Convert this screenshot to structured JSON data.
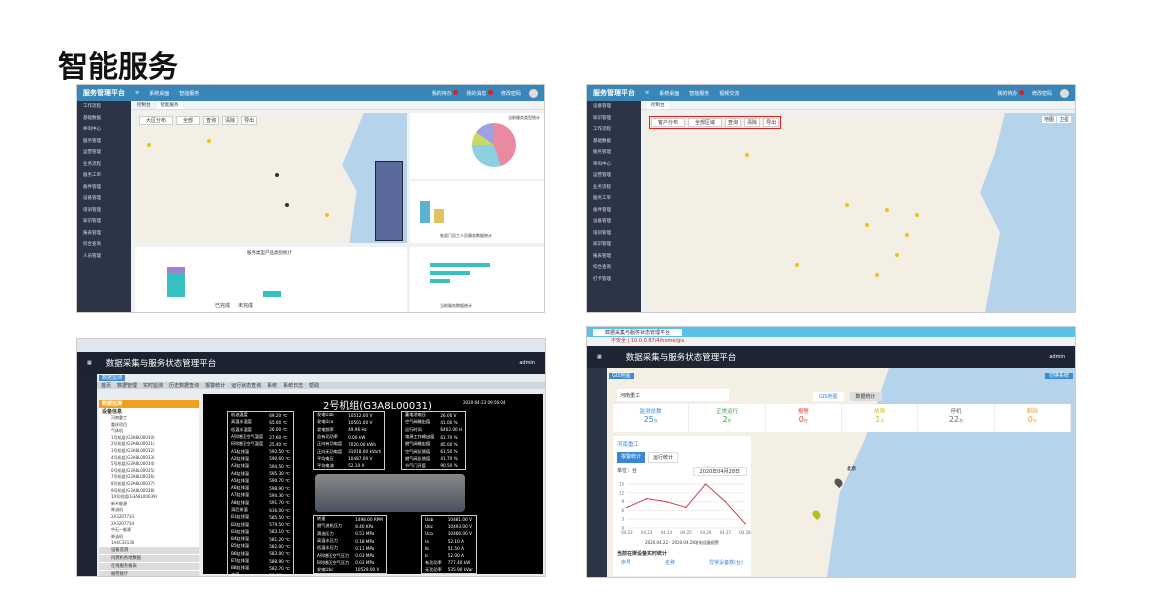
{
  "slide_title": "智能服务",
  "panel1": {
    "app_title": "服务管理平台",
    "nav": [
      "系统桌面",
      "智能服务"
    ],
    "header_links": [
      "我的待办",
      "我的消息",
      "修改密码"
    ],
    "tabs": [
      "控制台",
      "智能服务"
    ],
    "sidebar": [
      "工作流程",
      "基础数据",
      "呼叫中心",
      "服务管理",
      "运营管理",
      "业务流程",
      "服务工单",
      "备件管理",
      "设备管理",
      "培训管理",
      "知识管理",
      "报表管理",
      "综合查询",
      "人员管理"
    ],
    "filter": {
      "region": "大区分布",
      "product": "全部",
      "query": "查询",
      "reset": "清除",
      "export": "导出"
    },
    "chart_left_title": "服务类型产品类别统计",
    "chart_right_title": "当前服务类型统计",
    "chart_bottom_title": "当前服务数据统计",
    "chart_mid_title": "各部门员工人员服务数据统计",
    "legend": [
      "已完成",
      "未完成"
    ]
  },
  "panel2": {
    "app_title": "服务管理平台",
    "nav": [
      "系统桌面",
      "智能服务",
      "视频交流"
    ],
    "header_links": [
      "我的待办",
      "修改密码"
    ],
    "tabs": [
      "控制台"
    ],
    "sidebar": [
      "设备管理",
      "知识管理",
      "工作流程",
      "基础数据",
      "服务管理",
      "呼叫中心",
      "运营管理",
      "业务流程",
      "服务工单",
      "备件管理",
      "设备管理",
      "培训管理",
      "知识管理",
      "报表管理",
      "综合查询",
      "打卡管理"
    ],
    "filter": {
      "region": "客户分布",
      "product": "全部区域",
      "query": "查询",
      "reset": "清除",
      "export": "导出"
    },
    "map_types": [
      "地图",
      "卫星"
    ]
  },
  "panel3": {
    "app_title": "数据采集与服务状态管理平台",
    "user": "admin",
    "tab": "数据监测",
    "menu": [
      "首页",
      "数据管理",
      "实时监测",
      "历史数据查询",
      "报警统计",
      "运行状态查询",
      "系统",
      "系统日志",
      "帮助"
    ],
    "company": "河南重工",
    "panel_title": "数据监测",
    "tree_title": "设备信息",
    "tree": [
      "河南重工",
      "重庆项目",
      "气体机",
      "1号机组(G3A8L00030)",
      "2号机组(G3A8L00031)",
      "3号机组(G3A8L00032)",
      "4号机组(G3A8L00033)",
      "5号机组(G3A8L00034)",
      "6号机组(G3A8L00035)",
      "7号机组(G3A8L00036)",
      "8号机组(G3A8L00037)",
      "9号机组(G3A8L00038)",
      "10号机组(G3A8L00039)",
      "新乡能源",
      "柴油机",
      "2A3207733",
      "2A3207734",
      "中石一能源",
      "柴油机",
      "1A4C33130"
    ],
    "accordion": [
      "设备监测",
      "内燃机各地数据",
      "在线服务报表",
      "报警统计",
      "柴油机组各地数据"
    ],
    "unit_title": "2号机组(G3A8L00031)",
    "timestamp": "2020-04-23 09:56:04",
    "table_a": [
      [
        "机油温度",
        "69.20 ℃"
      ],
      [
        "高温水温度",
        "65.00 ℃"
      ],
      [
        "低温水温度",
        "26.00 ℃"
      ],
      [
        "A列增压空气温度",
        "27.60 ℃"
      ],
      [
        "B列增压空气温度",
        "25.40 ℃"
      ],
      [
        "A1缸排温",
        "592.50 ℃"
      ],
      [
        "A2缸排温",
        "590.60 ℃"
      ],
      [
        "A3缸排温",
        "594.50 ℃"
      ],
      [
        "A4缸排温",
        "595.30 ℃"
      ],
      [
        "A5缸排温",
        "590.70 ℃"
      ],
      [
        "A6缸排温",
        "598.90 ℃"
      ],
      [
        "A7缸排温",
        "594.30 ℃"
      ],
      [
        "A8缸排温",
        "591.70 ℃"
      ],
      [
        "涡后排温",
        "616.00 ℃"
      ],
      [
        "B1缸排温",
        "585.50 ℃"
      ],
      [
        "B2缸排温",
        "579.50 ℃"
      ],
      [
        "B3缸排温",
        "583.10 ℃"
      ],
      [
        "B4缸排温",
        "581.20 ℃"
      ],
      [
        "B5缸排温",
        "582.00 ℃"
      ],
      [
        "B6缸排温",
        "583.00 ℃"
      ],
      [
        "B7缸排温",
        "588.90 ℃"
      ],
      [
        "B8缸排温",
        "582.70 ℃"
      ],
      [
        "油温",
        "38.00 ℃"
      ]
    ],
    "table_b": [
      [
        "发电Uab",
        "10512.00 V"
      ],
      [
        "发电Uca",
        "10501.00 V"
      ],
      [
        "发电频率",
        "49.96 Hz"
      ],
      [
        "总有功功率",
        "0.00 kW"
      ],
      [
        "正向有功电度",
        "7020.00 kWh"
      ],
      [
        "正向无功电度",
        "31018.00 kVarh"
      ],
      [
        "平均电压",
        "10487.00 V"
      ],
      [
        "平均电流",
        "52.10 A"
      ]
    ],
    "table_c": [
      [
        "蓄电池电压",
        "26.00 V"
      ],
      [
        "空气阀输出值",
        "41.00 %"
      ],
      [
        "运行时间",
        "6402.00 H"
      ],
      [
        "电源工作输出值",
        "61.70 %"
      ],
      [
        "燃气阀输出值",
        "85.00 %"
      ],
      [
        "空气阀反馈值",
        "61.50 %"
      ],
      [
        "燃气阀反馈值",
        "41.70 %"
      ],
      [
        "节气门开度",
        "90.50 %"
      ]
    ],
    "table_d": [
      [
        "转速",
        "1498.00 RPM"
      ],
      [
        "燃气进机压力",
        "8.40 KPa"
      ],
      [
        "滑油压力",
        "0.51 MPa"
      ],
      [
        "高温水压力",
        "0.18 MPa"
      ],
      [
        "低温水压力",
        "0.11 MPa"
      ],
      [
        "A列增压空气压力",
        "0.03 MPa"
      ],
      [
        "B列增压空气压力",
        "0.03 MPa"
      ],
      [
        "发电Ubc",
        "10529.00 V"
      ]
    ],
    "table_e": [
      [
        "Uab",
        "10481.00 V"
      ],
      [
        "Ubc",
        "10493.00 V"
      ],
      [
        "Uca",
        "10466.00 V"
      ],
      [
        "Ia",
        "52.10 A"
      ],
      [
        "Ib",
        "51.50 A"
      ],
      [
        "Ic",
        "52.00 A"
      ],
      [
        "有功功率",
        "777.40 kW"
      ],
      [
        "无功功率",
        "535.90 kVar"
      ]
    ]
  },
  "panel4": {
    "browser_tab": "数据采集与服务状态管理平台",
    "address": "不安全 | 10.0.0.87/4/home/gis",
    "app_title": "数据采集与服务状态管理平台",
    "user": "admin",
    "tab": "GIS地图",
    "switch": "切换系统",
    "search_value": "河南重工",
    "view_tabs": [
      "GIS地图",
      "数据统计"
    ],
    "stats": [
      {
        "label": "监测总数",
        "value": "25",
        "unit": "台",
        "color": "#3a86d0"
      },
      {
        "label": "正常运行",
        "value": "2",
        "unit": "台",
        "color": "#3aa040"
      },
      {
        "label": "报警",
        "value": "0",
        "unit": "台",
        "color": "#e04040"
      },
      {
        "label": "故障",
        "value": "1",
        "unit": "台",
        "color": "#d8c020"
      },
      {
        "label": "停机",
        "value": "22",
        "unit": "台",
        "color": "#666666"
      },
      {
        "label": "断网",
        "value": "0",
        "unit": "台",
        "color": "#e8a030"
      }
    ],
    "company": "河南重工",
    "sub_tabs": [
      "报警统计",
      "运行统计"
    ],
    "unit_label": "单位：台",
    "date": "2020年04月28日",
    "chart_caption": "2020.04.22 - 2020.04.28发电设备报警",
    "chart": {
      "x": [
        "04.22",
        "04.23",
        "04.24",
        "04.25",
        "04.26",
        "04.27",
        "04.28"
      ],
      "y": [
        7,
        10,
        9,
        7,
        15,
        9,
        1.5
      ],
      "yticks": [
        0,
        3,
        6,
        9,
        12,
        15
      ]
    },
    "list_title": "当前在岸设备实时统计",
    "list_cols": [
      "序号",
      "名称",
      "异常设备数(台)"
    ],
    "map_label": "北京"
  }
}
